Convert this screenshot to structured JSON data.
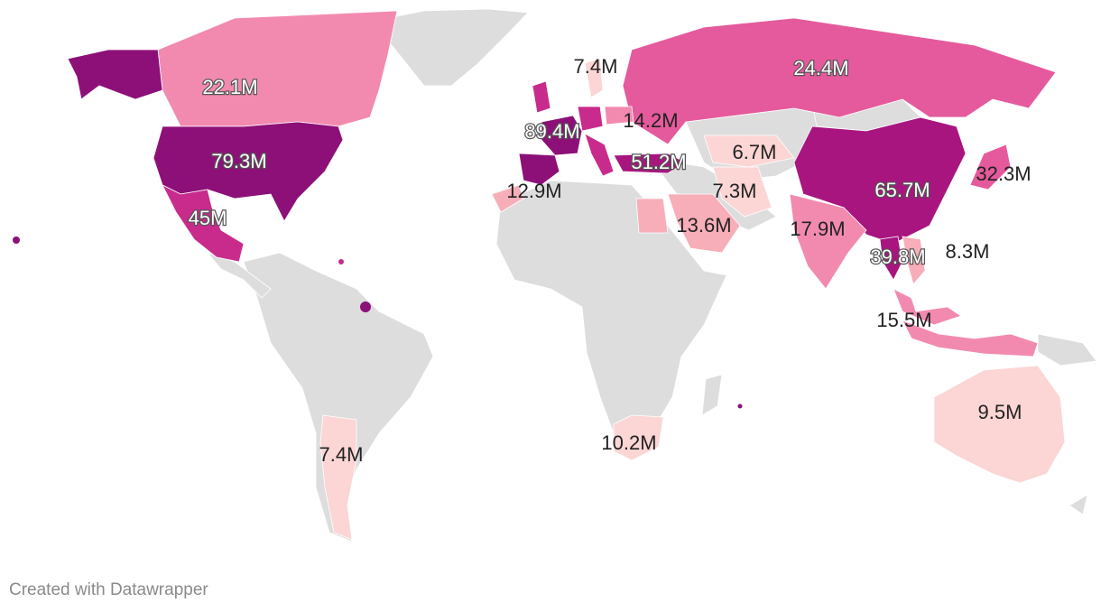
{
  "colors": {
    "no_data": "#dddddd",
    "scale": [
      "#fcd5d5",
      "#f7aeb9",
      "#f28ab0",
      "#e55a9c",
      "#c82b8c",
      "#8c1077"
    ]
  },
  "countries": [
    {
      "id": "usa",
      "value": "79.3M",
      "color": "#8c1077",
      "label_style": "light"
    },
    {
      "id": "alaska",
      "value": "",
      "color": "#8c1077"
    },
    {
      "id": "canada",
      "value": "22.1M",
      "color": "#f28ab0",
      "label_style": "light"
    },
    {
      "id": "mexico",
      "value": "45M",
      "color": "#c82b8c",
      "label_style": "light"
    },
    {
      "id": "russia",
      "value": "24.4M",
      "color": "#e55a9c",
      "label_style": "light"
    },
    {
      "id": "china",
      "value": "65.7M",
      "color": "#a8157f",
      "label_style": "light"
    },
    {
      "id": "france",
      "value": "89.4M",
      "color": "#8c1077",
      "label_style": "light"
    },
    {
      "id": "spain",
      "value": "",
      "color": "#8c1077"
    },
    {
      "id": "italy",
      "value": "",
      "color": "#c82b8c"
    },
    {
      "id": "uk",
      "value": "",
      "color": "#c82b8c"
    },
    {
      "id": "germany",
      "value": "",
      "color": "#c82b8c"
    },
    {
      "id": "turkey",
      "value": "51.2M",
      "color": "#a8157f",
      "label_style": "light"
    },
    {
      "id": "thailand",
      "value": "39.8M",
      "color": "#a8157f",
      "label_style": "light"
    },
    {
      "id": "japan",
      "value": "32.3M",
      "color": "#e55a9c",
      "label_style": "dark"
    },
    {
      "id": "india",
      "value": "17.9M",
      "color": "#f28ab0",
      "label_style": "dark"
    },
    {
      "id": "malaysia",
      "value": "15.5M",
      "color": "#f28ab0",
      "label_style": "dark"
    },
    {
      "id": "saudi",
      "value": "13.6M",
      "color": "#f7aeb9",
      "label_style": "dark"
    },
    {
      "id": "egypt",
      "value": "",
      "color": "#f7aeb9"
    },
    {
      "id": "morocco",
      "value": "12.9M",
      "color": "#f7aeb9",
      "label_style": "dark"
    },
    {
      "id": "poland",
      "value": "14.2M",
      "color": "#f28ab0",
      "label_style": "dark"
    },
    {
      "id": "sweden",
      "value": "7.4M",
      "color": "#fcd5d5",
      "label_style": "dark"
    },
    {
      "id": "iran",
      "value": "7.3M",
      "color": "#fcd5d5",
      "label_style": "dark"
    },
    {
      "id": "kazakhstan",
      "value": "6.7M",
      "color": "#fcd5d5",
      "label_style": "dark"
    },
    {
      "id": "vietnam",
      "value": "8.3M",
      "color": "#f7aeb9",
      "label_style": "dark"
    },
    {
      "id": "indonesia",
      "value": "",
      "color": "#f28ab0"
    },
    {
      "id": "australia",
      "value": "9.5M",
      "color": "#fcd5d5",
      "label_style": "dark"
    },
    {
      "id": "south-africa",
      "value": "10.2M",
      "color": "#fcd5d5",
      "label_style": "dark"
    },
    {
      "id": "argentina",
      "value": "7.4M",
      "color": "#fcd5d5",
      "label_style": "dark"
    }
  ],
  "footer": {
    "credit": "Created with Datawrapper"
  }
}
